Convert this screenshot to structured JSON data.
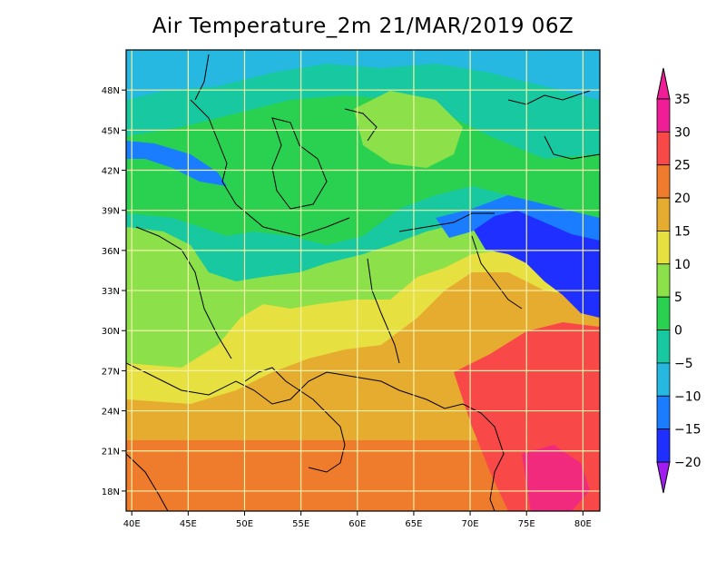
{
  "title": "Air Temperature_2m 21/MAR/2019 06Z",
  "map": {
    "lon_range": [
      39.5,
      81.5
    ],
    "lat_range": [
      16.5,
      51.0
    ],
    "lon_ticks": [
      {
        "value": 40,
        "label": "40E"
      },
      {
        "value": 45,
        "label": "45E"
      },
      {
        "value": 50,
        "label": "50E"
      },
      {
        "value": 55,
        "label": "55E"
      },
      {
        "value": 60,
        "label": "60E"
      },
      {
        "value": 65,
        "label": "65E"
      },
      {
        "value": 70,
        "label": "70E"
      },
      {
        "value": 75,
        "label": "75E"
      },
      {
        "value": 80,
        "label": "80E"
      }
    ],
    "lat_ticks": [
      {
        "value": 18,
        "label": "18N"
      },
      {
        "value": 21,
        "label": "21N"
      },
      {
        "value": 24,
        "label": "24N"
      },
      {
        "value": 27,
        "label": "27N"
      },
      {
        "value": 30,
        "label": "30N"
      },
      {
        "value": 33,
        "label": "33N"
      },
      {
        "value": 36,
        "label": "36N"
      },
      {
        "value": 39,
        "label": "39N"
      },
      {
        "value": 42,
        "label": "42N"
      },
      {
        "value": 45,
        "label": "45N"
      },
      {
        "value": 48,
        "label": "48N"
      }
    ],
    "grid_color": "#f2f2a8"
  },
  "colorbar": {
    "levels": [
      -20,
      -15,
      -10,
      -5,
      0,
      5,
      10,
      15,
      20,
      25,
      30,
      35
    ],
    "labels": [
      "35",
      "30",
      "25",
      "20",
      "15",
      "10",
      "5",
      "0",
      "−5",
      "−10",
      "−15",
      "−20"
    ],
    "colors": [
      "#a01cf0",
      "#1f2fff",
      "#1a7cff",
      "#26b8e0",
      "#18c8a0",
      "#2ad050",
      "#8ce04a",
      "#e6e040",
      "#e6ac30",
      "#ee7c2c",
      "#f84848",
      "#f01e96"
    ],
    "under_color": "#a01cf0",
    "over_color": "#f01e96"
  }
}
